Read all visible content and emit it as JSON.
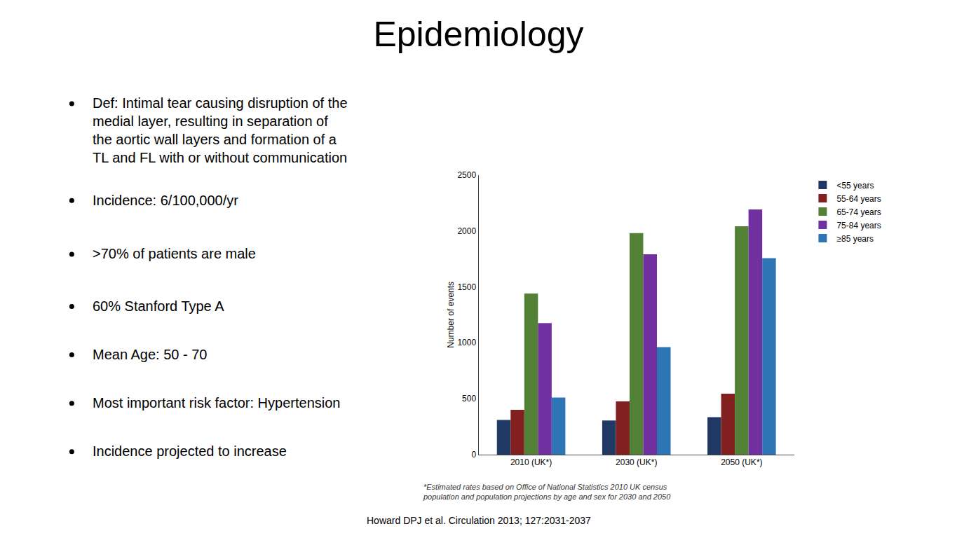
{
  "chart_data": {
    "type": "bar",
    "title": "Epidemiology",
    "annotations": [
      "Def: Intimal tear causing disruption of the\nmedial layer, resulting in separation of\nthe aortic wall layers and formation of a\nTL and FL with or without communication",
      "Incidence: 6/100,000/yr",
      ">70% of patients are male",
      "60% Stanford Type A",
      "Mean Age: 50 - 70",
      "Most important risk factor: Hypertension",
      "Incidence projected to increase",
      "*Estimated rates based on Office of National Statistics 2010 UK census\npopulation and population projections by age and sex for 2030 and 2050",
      "Howard DPJ et al. Circulation 2013; 127:2031-2037"
    ],
    "categories": [
      "2010 (UK*)",
      "2030 (UK*)",
      "2050 (UK*)"
    ],
    "series": [
      {
        "name": "<55 years",
        "color": "#1f3864",
        "values": [
          310,
          305,
          335
        ]
      },
      {
        "name": "55-64 years",
        "color": "#822020",
        "values": [
          400,
          475,
          545
        ]
      },
      {
        "name": "65-74 years",
        "color": "#538135",
        "values": [
          1440,
          1980,
          2040
        ]
      },
      {
        "name": "75-84 years",
        "color": "#7030a0",
        "values": [
          1175,
          1790,
          2190
        ]
      },
      {
        "name": "≥85 years",
        "color": "#2e75b6",
        "values": [
          510,
          960,
          1755
        ]
      }
    ],
    "ylabel": "Number of events",
    "ylim": [
      0,
      2500
    ],
    "yticks": [
      0,
      500,
      1000,
      1500,
      2000,
      2500
    ],
    "grid": false,
    "legend": "upper right"
  }
}
